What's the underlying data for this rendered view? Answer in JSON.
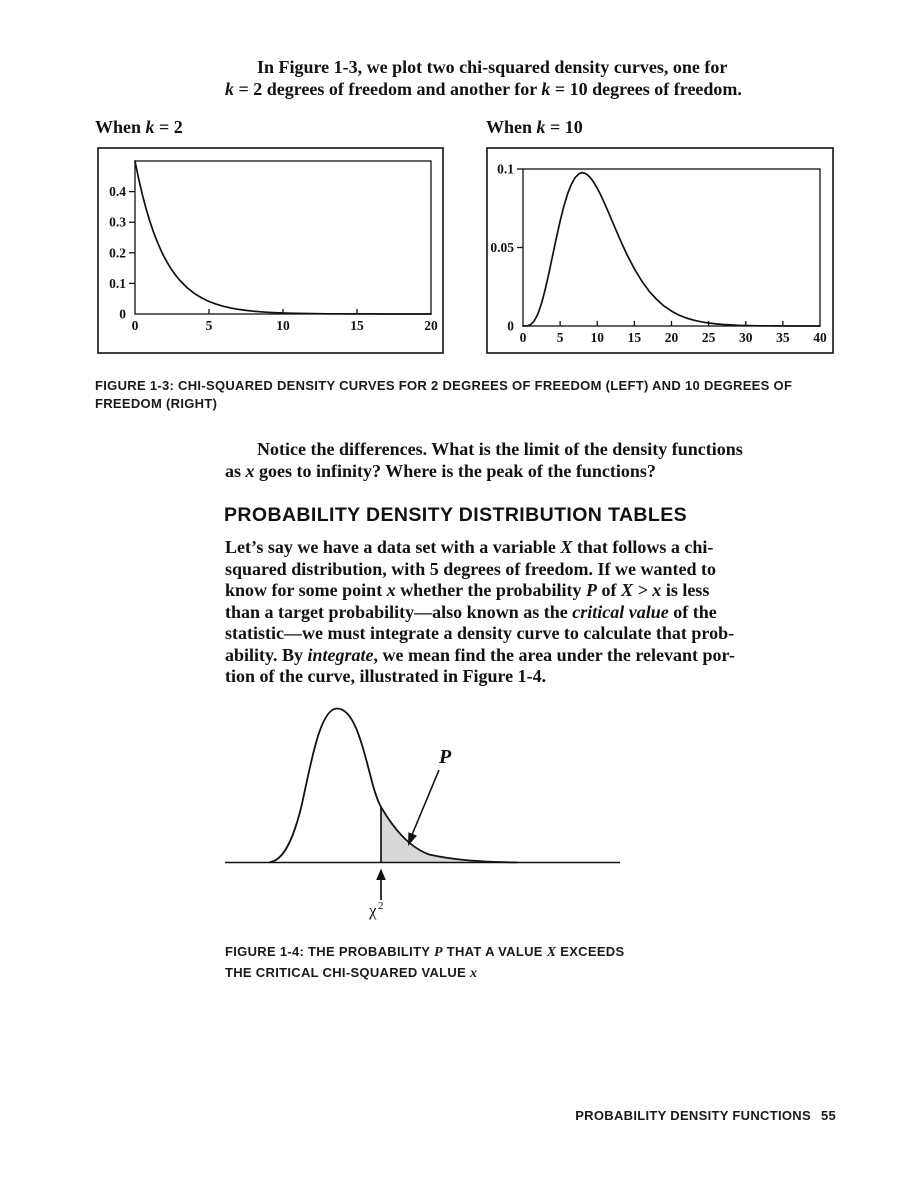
{
  "intro": {
    "lines": [
      [
        {
          "t": "In Figure 1-3, we plot two chi-squared density curves, one for"
        }
      ],
      [
        {
          "t": "k",
          "i": true
        },
        {
          "t": " = 2 degrees of freedom and another for "
        },
        {
          "t": "k",
          "i": true
        },
        {
          "t": " = 10 degrees of freedom."
        }
      ]
    ]
  },
  "figure13": {
    "left_title_runs": [
      {
        "t": "When "
      },
      {
        "t": "k",
        "i": true
      },
      {
        "t": " = 2"
      }
    ],
    "right_title_runs": [
      {
        "t": "When "
      },
      {
        "t": "k",
        "i": true
      },
      {
        "t": " = 10"
      }
    ],
    "caption_lines": [
      [
        {
          "t": "FIGURE 1-3: CHI-SQUARED DENSITY CURVES FOR 2 DEGREES OF FREEDOM (LEFT) AND 10 DEGREES OF"
        }
      ],
      [
        {
          "t": "FREEDOM (RIGHT)"
        }
      ]
    ]
  },
  "notice": {
    "lines": [
      [
        {
          "t": "Notice the differences. What is the limit of the density functions"
        }
      ],
      [
        {
          "t": "as "
        },
        {
          "t": "x",
          "i": true
        },
        {
          "t": " goes to infinity? Where is the peak of the functions?"
        }
      ]
    ]
  },
  "section_heading": "PROBABILITY DENSITY DISTRIBUTION TABLES",
  "body_paragraph": {
    "lines": [
      [
        {
          "t": "Let’s say we have a data set with a variable "
        },
        {
          "t": "X",
          "i": true
        },
        {
          "t": " that follows a chi-"
        }
      ],
      [
        {
          "t": "squared distribution, with 5 degrees of freedom. If we wanted to"
        }
      ],
      [
        {
          "t": "know for some point "
        },
        {
          "t": "x",
          "i": true
        },
        {
          "t": " whether the probability "
        },
        {
          "t": "P",
          "i": true
        },
        {
          "t": " of "
        },
        {
          "t": "X > x",
          "i": true
        },
        {
          "t": " is less"
        }
      ],
      [
        {
          "t": "than a target probability—also known as the "
        },
        {
          "t": "critical value",
          "i": true
        },
        {
          "t": " of the"
        }
      ],
      [
        {
          "t": "statistic—we must integrate a density curve to calculate that prob-"
        }
      ],
      [
        {
          "t": "ability. By "
        },
        {
          "t": "integrate",
          "i": true
        },
        {
          "t": ", we mean find the area under the relevant por-"
        }
      ],
      [
        {
          "t": "tion of the curve, illustrated in Figure 1-4."
        }
      ]
    ]
  },
  "figure14": {
    "p_label": "P",
    "chi_label": "χ",
    "chi_sup": "2",
    "shade_color": "#d8d8d8",
    "caption_lines": [
      [
        {
          "t": "FIGURE 1-4: THE PROBABILITY "
        },
        {
          "t": "P",
          "i": true
        },
        {
          "t": " THAT A VALUE "
        },
        {
          "t": "X",
          "i": true
        },
        {
          "t": " EXCEEDS"
        }
      ],
      [
        {
          "t": "THE CRITICAL CHI-SQUARED VALUE "
        },
        {
          "t": "x",
          "i": true
        }
      ]
    ]
  },
  "footer": {
    "text": "PROBABILITY DENSITY FUNCTIONS",
    "page_number": "55"
  },
  "chart_data": [
    {
      "type": "line",
      "title": "When k = 2",
      "xlabel": "",
      "ylabel": "",
      "xlim": [
        0,
        20
      ],
      "ylim": [
        0,
        0.5
      ],
      "x_ticks": [
        0,
        5,
        10,
        15,
        20
      ],
      "x_tick_labels": [
        "0",
        "5",
        "10",
        "15",
        "20"
      ],
      "y_ticks": [
        0,
        0.1,
        0.2,
        0.3,
        0.4
      ],
      "y_tick_labels": [
        "0",
        "0.1",
        "0.2",
        "0.3",
        "0.4"
      ],
      "grid": false,
      "legend": false,
      "series_name": "chi-squared density, k = 2",
      "x": [
        0,
        0.25,
        0.5,
        0.75,
        1,
        1.25,
        1.5,
        1.75,
        2,
        2.25,
        2.5,
        2.75,
        3,
        3.5,
        4,
        4.5,
        5,
        5.5,
        6,
        6.5,
        7,
        7.5,
        8,
        8.5,
        9,
        9.5,
        10,
        10.5,
        11,
        11.5,
        12,
        12.5,
        13,
        13.5,
        14,
        14.5,
        15,
        15.5,
        16,
        16.5,
        17,
        17.5,
        18,
        18.5,
        19,
        19.5,
        20
      ],
      "y": [
        0.5,
        0.4412,
        0.3894,
        0.3437,
        0.3033,
        0.2676,
        0.2362,
        0.2084,
        0.1839,
        0.1623,
        0.1433,
        0.1264,
        0.1116,
        0.0869,
        0.0677,
        0.0527,
        0.041,
        0.032,
        0.0249,
        0.0194,
        0.0151,
        0.0118,
        0.0092,
        0.0071,
        0.0056,
        0.0043,
        0.0034,
        0.0026,
        0.002,
        0.0016,
        0.0012,
        0.001,
        0.0008,
        0.0006,
        0.0005,
        0.0004,
        0.0003,
        0.0002,
        0.0002,
        0.0001,
        0.0001,
        0.0001,
        0.0001,
        0.0001,
        0,
        0,
        0
      ]
    },
    {
      "type": "line",
      "title": "When k = 10",
      "xlabel": "",
      "ylabel": "",
      "xlim": [
        0,
        40
      ],
      "ylim": [
        0,
        0.1
      ],
      "x_ticks": [
        0,
        5,
        10,
        15,
        20,
        25,
        30,
        35,
        40
      ],
      "x_tick_labels": [
        "0",
        "5",
        "10",
        "15",
        "20",
        "25",
        "30",
        "35",
        "40"
      ],
      "y_ticks": [
        0,
        0.05,
        0.1
      ],
      "y_tick_labels": [
        "0",
        "0.05",
        "0.1"
      ],
      "grid": false,
      "legend": false,
      "series_name": "chi-squared density, k = 10",
      "x": [
        0,
        0.5,
        1,
        1.5,
        2,
        2.5,
        3,
        3.5,
        4,
        4.5,
        5,
        5.5,
        6,
        6.5,
        7,
        7.5,
        8,
        8.5,
        9,
        9.5,
        10,
        10.5,
        11,
        11.5,
        12,
        12.5,
        13,
        13.5,
        14,
        14.5,
        15,
        16,
        17,
        18,
        19,
        20,
        21,
        22,
        23,
        24,
        25,
        26,
        27,
        28,
        29,
        30,
        31,
        32,
        33,
        34,
        35,
        36,
        37,
        38,
        39,
        40
      ],
      "y": [
        0,
        6e-05,
        0.00079,
        0.00311,
        0.00766,
        0.01457,
        0.02353,
        0.03395,
        0.04511,
        0.05627,
        0.0668,
        0.07617,
        0.08401,
        0.09012,
        0.0944,
        0.09689,
        0.09768,
        0.09695,
        0.09491,
        0.09176,
        0.08773,
        0.08305,
        0.07791,
        0.07248,
        0.06693,
        0.06137,
        0.05591,
        0.05064,
        0.04561,
        0.04088,
        0.03646,
        0.02863,
        0.02213,
        0.01687,
        0.0127,
        0.00946,
        0.00697,
        0.00509,
        0.00369,
        0.00265,
        0.0019,
        0.00134,
        0.00095,
        0.00067,
        0.00046,
        0.00032,
        0.00022,
        0.00015,
        0.0001,
        7e-05,
        5e-05,
        3e-05,
        2e-05,
        1.5e-05,
        1e-05,
        7e-06
      ]
    }
  ]
}
